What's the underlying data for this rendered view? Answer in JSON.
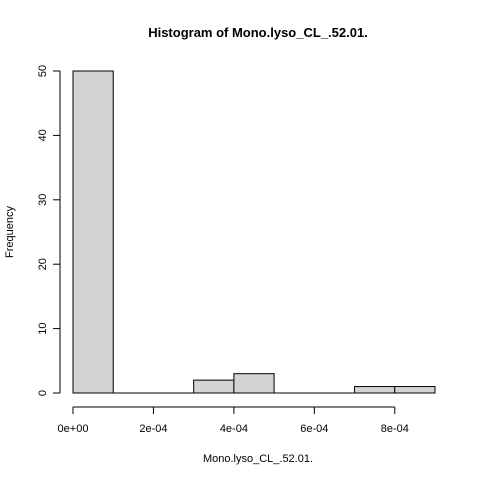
{
  "chart_data": {
    "type": "bar",
    "title": "Histogram of Mono.lyso_CL_.52.01.",
    "xlabel": "Mono.lyso_CL_.52.01.",
    "ylabel": "Frequency",
    "bins": [
      {
        "start": 0.0,
        "end": 0.0001,
        "count": 50
      },
      {
        "start": 0.0001,
        "end": 0.0002,
        "count": 0
      },
      {
        "start": 0.0002,
        "end": 0.0003,
        "count": 0
      },
      {
        "start": 0.0003,
        "end": 0.0004,
        "count": 2
      },
      {
        "start": 0.0004,
        "end": 0.0005,
        "count": 3
      },
      {
        "start": 0.0005,
        "end": 0.0006,
        "count": 0
      },
      {
        "start": 0.0006,
        "end": 0.0007,
        "count": 0
      },
      {
        "start": 0.0007,
        "end": 0.0008,
        "count": 1
      },
      {
        "start": 0.0008,
        "end": 0.0009,
        "count": 1
      }
    ],
    "xlim": [
      0.0,
      0.0009
    ],
    "ylim": [
      0,
      50
    ],
    "xticks": [
      {
        "value": 0.0,
        "label": "0e+00"
      },
      {
        "value": 0.0002,
        "label": "2e-04"
      },
      {
        "value": 0.0004,
        "label": "4e-04"
      },
      {
        "value": 0.0006,
        "label": "6e-04"
      },
      {
        "value": 0.0008,
        "label": "8e-04"
      }
    ],
    "yticks": [
      {
        "value": 0,
        "label": "0"
      },
      {
        "value": 10,
        "label": "10"
      },
      {
        "value": 20,
        "label": "20"
      },
      {
        "value": 30,
        "label": "30"
      },
      {
        "value": 40,
        "label": "40"
      },
      {
        "value": 50,
        "label": "50"
      }
    ],
    "grid": false,
    "colors": {
      "bar_fill": "#d3d3d3",
      "bar_stroke": "#000000"
    }
  }
}
